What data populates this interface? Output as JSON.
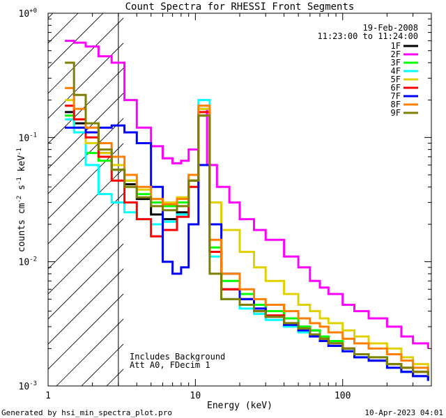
{
  "chart_data": {
    "type": "line",
    "title": "Count Spectra for RHESSI Front Segments",
    "xlabel": "Energy (keV)",
    "ylabel": "counts cm-2 s-1 keV-1",
    "xscale": "log",
    "yscale": "log",
    "xlim": [
      1.0,
      400
    ],
    "ylim": [
      0.001,
      1.0
    ],
    "x_tick_labels": [
      "1",
      "10",
      "100"
    ],
    "y_tick_labels": [
      "10-3",
      "10-2",
      "10-1",
      "10+0"
    ],
    "date": "19-Feb-2008",
    "time_range": "11:23:00 to 11:24:00",
    "attenuator_cutoff_kev": 3.0,
    "annotation_lines": [
      "Includes Background",
      "Att A0, FDecim 1"
    ],
    "footer_left": "Generated by hsi_min_spectra_plot.pro",
    "footer_right": "10-Apr-2023 04:01",
    "series": [
      {
        "name": "1F",
        "color": "#000000",
        "x": [
          1.3,
          1.5,
          1.8,
          2.2,
          2.7,
          3.3,
          4.0,
          5.0,
          6.0,
          7.5,
          9.0,
          10.5,
          12.5,
          15,
          20,
          25,
          30,
          40,
          50,
          60,
          70,
          80,
          100,
          120,
          150,
          200,
          250,
          300,
          380
        ],
        "y": [
          0.16,
          0.13,
          0.11,
          0.075,
          0.055,
          0.042,
          0.032,
          0.024,
          0.022,
          0.025,
          0.045,
          0.15,
          0.012,
          0.006,
          0.005,
          0.004,
          0.0045,
          0.0035,
          0.003,
          0.0028,
          0.0025,
          0.0022,
          0.002,
          0.0018,
          0.0016,
          0.0015,
          0.0013,
          0.0012,
          0.0011
        ]
      },
      {
        "name": "2F",
        "color": "#ff00ff",
        "x": [
          1.3,
          1.5,
          1.8,
          2.2,
          2.7,
          3.3,
          4.0,
          5.0,
          6.0,
          7.0,
          8.0,
          9.0,
          10.5,
          12.0,
          14,
          17,
          20,
          25,
          30,
          40,
          50,
          60,
          70,
          80,
          100,
          120,
          150,
          200,
          250,
          300,
          380
        ],
        "y": [
          0.6,
          0.58,
          0.54,
          0.45,
          0.4,
          0.2,
          0.12,
          0.085,
          0.068,
          0.062,
          0.065,
          0.08,
          0.17,
          0.06,
          0.04,
          0.03,
          0.022,
          0.018,
          0.015,
          0.011,
          0.009,
          0.007,
          0.0062,
          0.0055,
          0.0045,
          0.004,
          0.0035,
          0.003,
          0.0025,
          0.0022,
          0.002
        ]
      },
      {
        "name": "3F",
        "color": "#00ff00",
        "x": [
          1.3,
          1.5,
          1.8,
          2.2,
          2.7,
          3.3,
          4.0,
          5.0,
          6.0,
          7.5,
          9.0,
          10.5,
          12.5,
          15,
          20,
          25,
          30,
          40,
          50,
          60,
          70,
          80,
          100,
          120,
          150,
          200,
          250,
          300,
          380
        ],
        "y": [
          0.15,
          0.12,
          0.075,
          0.065,
          0.055,
          0.045,
          0.035,
          0.03,
          0.028,
          0.03,
          0.05,
          0.17,
          0.013,
          0.007,
          0.0055,
          0.0045,
          0.004,
          0.0035,
          0.003,
          0.0028,
          0.0025,
          0.0023,
          0.002,
          0.0018,
          0.0017,
          0.0015,
          0.0014,
          0.0013,
          0.0012
        ]
      },
      {
        "name": "4F",
        "color": "#00ffff",
        "x": [
          1.3,
          1.5,
          1.8,
          2.2,
          2.7,
          3.3,
          4.0,
          5.0,
          6.0,
          7.5,
          9.0,
          10.5,
          12.5,
          15,
          20,
          25,
          30,
          40,
          50,
          60,
          70,
          80,
          100,
          120,
          150,
          200,
          250,
          300,
          380
        ],
        "y": [
          0.14,
          0.11,
          0.06,
          0.035,
          0.03,
          0.025,
          0.022,
          0.02,
          0.021,
          0.024,
          0.04,
          0.2,
          0.011,
          0.005,
          0.0042,
          0.0038,
          0.0034,
          0.003,
          0.0027,
          0.0025,
          0.0023,
          0.0021,
          0.0019,
          0.0017,
          0.0016,
          0.0015,
          0.0013,
          0.0012,
          0.0011
        ]
      },
      {
        "name": "5F",
        "color": "#e0d000",
        "x": [
          1.3,
          1.5,
          1.8,
          2.2,
          2.7,
          3.3,
          4.0,
          5.0,
          6.0,
          7.5,
          9.0,
          10.5,
          12.5,
          15,
          20,
          25,
          30,
          40,
          50,
          60,
          70,
          80,
          100,
          120,
          150,
          200,
          250,
          300,
          380
        ],
        "y": [
          0.2,
          0.14,
          0.09,
          0.075,
          0.06,
          0.045,
          0.038,
          0.032,
          0.03,
          0.033,
          0.05,
          0.17,
          0.03,
          0.018,
          0.012,
          0.009,
          0.007,
          0.0055,
          0.0045,
          0.004,
          0.0035,
          0.0032,
          0.0028,
          0.0025,
          0.0022,
          0.002,
          0.0017,
          0.0015,
          0.0013
        ]
      },
      {
        "name": "6F",
        "color": "#ff0000",
        "x": [
          1.3,
          1.5,
          1.8,
          2.2,
          2.7,
          3.3,
          4.0,
          5.0,
          6.0,
          7.5,
          9.0,
          10.5,
          12.5,
          15,
          20,
          25,
          30,
          40,
          50,
          60,
          70,
          80,
          100,
          120,
          150,
          200,
          250,
          300,
          380
        ],
        "y": [
          0.18,
          0.14,
          0.1,
          0.07,
          0.045,
          0.03,
          0.022,
          0.016,
          0.018,
          0.023,
          0.04,
          0.16,
          0.012,
          0.006,
          0.005,
          0.0042,
          0.0037,
          0.0032,
          0.0029,
          0.0026,
          0.0024,
          0.0022,
          0.002,
          0.0018,
          0.0016,
          0.0015,
          0.0014,
          0.0013,
          0.0012
        ]
      },
      {
        "name": "7F",
        "color": "#0000ff",
        "x": [
          1.3,
          1.5,
          1.8,
          2.2,
          2.7,
          3.3,
          4.0,
          5.0,
          6.0,
          7.0,
          8.0,
          9.0,
          10.5,
          12.5,
          15,
          20,
          25,
          30,
          40,
          50,
          60,
          70,
          80,
          100,
          120,
          150,
          200,
          250,
          300,
          380
        ],
        "y": [
          0.12,
          0.12,
          0.11,
          0.12,
          0.125,
          0.11,
          0.09,
          0.04,
          0.01,
          0.008,
          0.009,
          0.02,
          0.06,
          0.02,
          0.008,
          0.005,
          0.0042,
          0.0036,
          0.0031,
          0.0028,
          0.0025,
          0.0023,
          0.0021,
          0.0019,
          0.0017,
          0.0016,
          0.0014,
          0.0013,
          0.0012,
          0.0011
        ]
      },
      {
        "name": "8F",
        "color": "#ff8000",
        "x": [
          1.3,
          1.5,
          1.8,
          2.2,
          2.7,
          3.3,
          4.0,
          5.0,
          6.0,
          7.5,
          9.0,
          10.5,
          12.5,
          15,
          20,
          25,
          30,
          40,
          50,
          60,
          70,
          80,
          100,
          120,
          150,
          200,
          250,
          300,
          380
        ],
        "y": [
          0.25,
          0.17,
          0.12,
          0.09,
          0.07,
          0.05,
          0.04,
          0.032,
          0.029,
          0.032,
          0.05,
          0.18,
          0.015,
          0.008,
          0.006,
          0.005,
          0.0045,
          0.004,
          0.0035,
          0.0032,
          0.003,
          0.0027,
          0.0024,
          0.0022,
          0.002,
          0.0018,
          0.0016,
          0.0014,
          0.0013
        ]
      },
      {
        "name": "9F",
        "color": "#808000",
        "x": [
          1.3,
          1.5,
          1.8,
          2.2,
          2.7,
          3.3,
          4.0,
          5.0,
          6.0,
          7.5,
          9.0,
          10.5,
          12.5,
          15,
          20,
          25,
          30,
          40,
          50,
          60,
          70,
          80,
          100,
          120,
          150,
          200,
          250,
          300,
          380
        ],
        "y": [
          0.4,
          0.22,
          0.13,
          0.08,
          0.055,
          0.04,
          0.033,
          0.028,
          0.026,
          0.028,
          0.045,
          0.15,
          0.008,
          0.005,
          0.0045,
          0.004,
          0.0036,
          0.0032,
          0.0029,
          0.0026,
          0.0024,
          0.0022,
          0.002,
          0.0018,
          0.0017,
          0.0015,
          0.0014,
          0.0013,
          0.0012
        ]
      }
    ]
  }
}
